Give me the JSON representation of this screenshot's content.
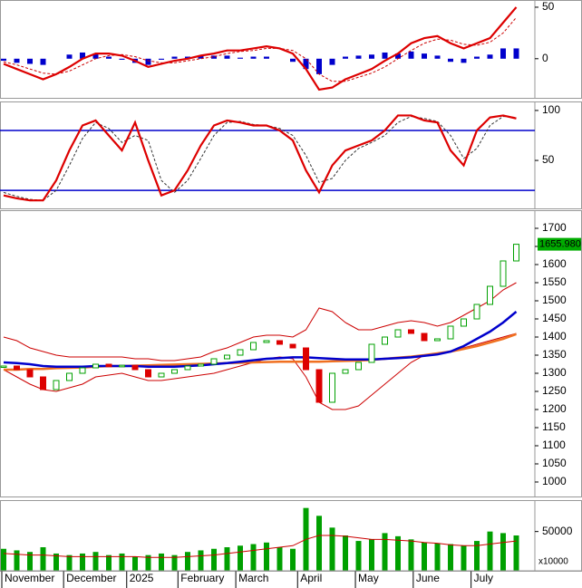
{
  "chart_data": [
    {
      "type": "line",
      "ylim": [
        -38,
        57
      ],
      "yticks": [
        0,
        50
      ],
      "series": [
        {
          "kind": "bar",
          "color": "#0000cc",
          "neg_color": "#0000cc",
          "values": [
            -2,
            -4,
            -5,
            -6,
            0,
            4,
            6,
            5,
            2,
            -1,
            -4,
            -6,
            -1,
            2,
            2,
            3,
            3,
            3,
            1,
            2,
            2,
            0,
            -3,
            -10,
            -15,
            -6,
            2,
            3,
            4,
            6,
            5,
            7,
            5,
            3,
            -3,
            -4,
            2,
            4,
            10,
            10
          ]
        },
        {
          "kind": "dashed",
          "color": "#cc0000",
          "values": [
            -3,
            -6,
            -10,
            -14,
            -15,
            -12,
            -6,
            0,
            3,
            4,
            2,
            -2,
            -4,
            -4,
            -2,
            0,
            2,
            5,
            7,
            8,
            10,
            10,
            8,
            0,
            -15,
            -22,
            -22,
            -18,
            -14,
            -8,
            0,
            8,
            15,
            19,
            18,
            14,
            13,
            16,
            25,
            40
          ]
        },
        {
          "kind": "line",
          "color": "#dd0000",
          "values": [
            -5,
            -10,
            -15,
            -20,
            -15,
            -8,
            0,
            5,
            5,
            3,
            -2,
            -8,
            -5,
            -2,
            0,
            3,
            5,
            8,
            8,
            10,
            12,
            10,
            5,
            -10,
            -30,
            -28,
            -20,
            -15,
            -10,
            -2,
            5,
            15,
            20,
            22,
            15,
            10,
            15,
            20,
            35,
            50
          ]
        }
      ]
    },
    {
      "type": "line",
      "ylim": [
        2,
        109
      ],
      "yticks": [
        50,
        100
      ],
      "hlines": [
        80,
        20
      ],
      "hline_color": "#0000cc",
      "series": [
        {
          "kind": "dashed",
          "color": "#333333",
          "values": [
            18,
            14,
            11,
            10,
            20,
            45,
            72,
            88,
            82,
            68,
            75,
            70,
            30,
            18,
            30,
            52,
            75,
            88,
            89,
            86,
            85,
            82,
            75,
            55,
            28,
            32,
            50,
            62,
            68,
            75,
            88,
            94,
            92,
            89,
            75,
            52,
            62,
            85,
            94,
            93
          ]
        },
        {
          "kind": "line",
          "color": "#dd0000",
          "values": [
            15,
            12,
            10,
            10,
            30,
            60,
            85,
            90,
            75,
            60,
            88,
            50,
            15,
            20,
            40,
            65,
            85,
            90,
            88,
            85,
            85,
            80,
            70,
            40,
            18,
            45,
            60,
            65,
            70,
            80,
            95,
            95,
            90,
            88,
            60,
            45,
            80,
            93,
            95,
            92
          ]
        }
      ]
    },
    {
      "type": "candlestick",
      "ylim": [
        960,
        1750
      ],
      "yticks": [
        1000,
        1050,
        1100,
        1150,
        1200,
        1250,
        1300,
        1350,
        1400,
        1450,
        1500,
        1550,
        1600,
        1650,
        1700
      ],
      "last_label": "1655.980",
      "last_color": "#00aa00",
      "series": [
        {
          "kind": "line",
          "color": "#cc0000",
          "width": 1,
          "values": [
            1400,
            1390,
            1370,
            1360,
            1350,
            1345,
            1345,
            1345,
            1345,
            1345,
            1340,
            1340,
            1335,
            1335,
            1340,
            1345,
            1360,
            1370,
            1385,
            1400,
            1405,
            1405,
            1400,
            1420,
            1480,
            1470,
            1440,
            1420,
            1420,
            1430,
            1440,
            1445,
            1440,
            1430,
            1440,
            1460,
            1480,
            1500,
            1530,
            1550
          ]
        },
        {
          "kind": "line",
          "color": "#cc0000",
          "width": 1,
          "values": [
            1310,
            1290,
            1270,
            1255,
            1250,
            1260,
            1270,
            1290,
            1295,
            1300,
            1290,
            1280,
            1280,
            1285,
            1290,
            1295,
            1300,
            1310,
            1320,
            1330,
            1340,
            1345,
            1340,
            1290,
            1220,
            1200,
            1200,
            1210,
            1240,
            1270,
            1300,
            1330,
            1350,
            1355,
            1360,
            1370,
            1380,
            1390,
            1400,
            1410
          ]
        },
        {
          "kind": "line",
          "color": "#f07020",
          "width": 2.5,
          "values": [
            1310,
            1310,
            1312,
            1312,
            1314,
            1315,
            1316,
            1318,
            1320,
            1320,
            1321,
            1322,
            1323,
            1324,
            1325,
            1326,
            1327,
            1328,
            1329,
            1330,
            1331,
            1332,
            1332,
            1332,
            1332,
            1333,
            1334,
            1335,
            1337,
            1340,
            1343,
            1346,
            1350,
            1355,
            1360,
            1367,
            1375,
            1385,
            1395,
            1408
          ]
        },
        {
          "kind": "line",
          "color": "#0000cc",
          "width": 2.5,
          "values": [
            1330,
            1328,
            1325,
            1320,
            1318,
            1318,
            1318,
            1320,
            1320,
            1320,
            1320,
            1318,
            1318,
            1318,
            1320,
            1322,
            1325,
            1328,
            1332,
            1336,
            1340,
            1342,
            1344,
            1344,
            1342,
            1340,
            1338,
            1338,
            1338,
            1340,
            1342,
            1344,
            1348,
            1352,
            1360,
            1375,
            1395,
            1415,
            1440,
            1470
          ]
        },
        {
          "kind": "candle",
          "up_color": "#00a000",
          "down_color": "#dd0000",
          "values": [
            1320,
            1310,
            1290,
            1255,
            1280,
            1300,
            1315,
            1325,
            1318,
            1322,
            1310,
            1290,
            1300,
            1310,
            1320,
            1325,
            1340,
            1350,
            1365,
            1385,
            1390,
            1380,
            1370,
            1310,
            1220,
            1300,
            1310,
            1330,
            1380,
            1400,
            1420,
            1410,
            1390,
            1395,
            1430,
            1450,
            1490,
            1540,
            1610,
            1655.98
          ]
        }
      ]
    },
    {
      "type": "bar",
      "ylim": [
        0,
        90000
      ],
      "yticks": [
        50000
      ],
      "unit_label": "x10000",
      "xticks": [
        {
          "value": 0,
          "label": "November"
        },
        {
          "value": 4.7,
          "label": "December"
        },
        {
          "value": 9.5,
          "label": "2025"
        },
        {
          "value": 13.4,
          "label": "February"
        },
        {
          "value": 17.8,
          "label": "March"
        },
        {
          "value": 22.5,
          "label": "April"
        },
        {
          "value": 26.9,
          "label": "May"
        },
        {
          "value": 31.3,
          "label": "June"
        },
        {
          "value": 35.7,
          "label": "July"
        }
      ],
      "series": [
        {
          "kind": "bar",
          "color": "#00a000",
          "neg_color": "#00a000",
          "values": [
            28000,
            26000,
            24000,
            30000,
            22000,
            20000,
            22000,
            24000,
            20000,
            22000,
            18000,
            20000,
            22000,
            20000,
            24000,
            26000,
            28000,
            30000,
            32000,
            34000,
            36000,
            30000,
            28000,
            80000,
            70000,
            55000,
            45000,
            38000,
            40000,
            48000,
            44000,
            40000,
            36000,
            35000,
            34000,
            32000,
            38000,
            50000,
            48000,
            45000
          ]
        },
        {
          "kind": "line",
          "color": "#cc0000",
          "width": 1,
          "values": [
            22000,
            21000,
            20000,
            20000,
            19000,
            18000,
            18000,
            18000,
            18000,
            18000,
            18000,
            17000,
            17000,
            17000,
            18000,
            19000,
            20000,
            22000,
            24000,
            26000,
            28000,
            30000,
            32000,
            40000,
            45000,
            45000,
            44000,
            42000,
            40000,
            40000,
            39000,
            38000,
            36000,
            35000,
            33000,
            32000,
            32000,
            34000,
            36000,
            38000
          ]
        }
      ]
    }
  ]
}
